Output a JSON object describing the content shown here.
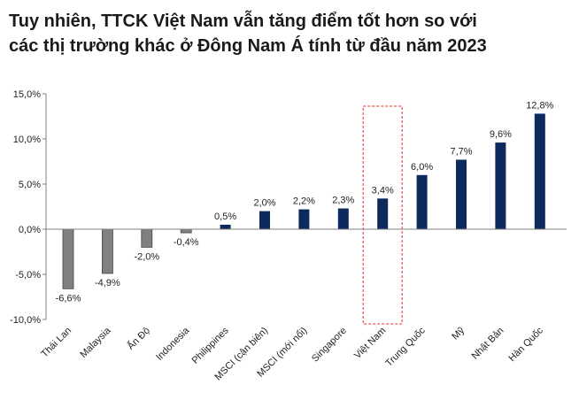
{
  "title_line1": "Tuy nhiên, TTCK Việt Nam vẫn tăng điểm tốt hơn so với",
  "title_line2": "các thị trường khác ở Đông Nam Á tính từ đầu năm 2023",
  "colors": {
    "negative": "#808080",
    "positive": "#0d2a5c",
    "highlight": "#e03030",
    "axis": "#7f7f7f"
  },
  "chart_data": {
    "type": "bar",
    "categories": [
      "Thái Lan",
      "Malaysia",
      "Ấn Độ",
      "Indonesia",
      "Philippines",
      "MSCI (cận biên)",
      "MSCI (mới nổi)",
      "Singapore",
      "Việt Nam",
      "Trung Quốc",
      "Mỹ",
      "Nhật Bản",
      "Hàn Quốc"
    ],
    "values": [
      -6.6,
      -4.9,
      -2.0,
      -0.4,
      0.5,
      2.0,
      2.2,
      2.3,
      3.4,
      6.0,
      7.7,
      9.6,
      12.8
    ],
    "value_labels": [
      "-6,6%",
      "-4,9%",
      "-2,0%",
      "-0,4%",
      "0,5%",
      "2,0%",
      "2,2%",
      "2,3%",
      "3,4%",
      "6,0%",
      "7,7%",
      "9,6%",
      "12,8%"
    ],
    "yticks": [
      15,
      10,
      5,
      0,
      -5,
      -10
    ],
    "ytick_labels": [
      "15,0%",
      "10,0%",
      "5,0%",
      "0,0%",
      "-5,0%",
      "-10,0%"
    ],
    "ylim": [
      -10,
      15
    ],
    "highlight": "Việt Nam",
    "grid": false,
    "legend": "none"
  }
}
